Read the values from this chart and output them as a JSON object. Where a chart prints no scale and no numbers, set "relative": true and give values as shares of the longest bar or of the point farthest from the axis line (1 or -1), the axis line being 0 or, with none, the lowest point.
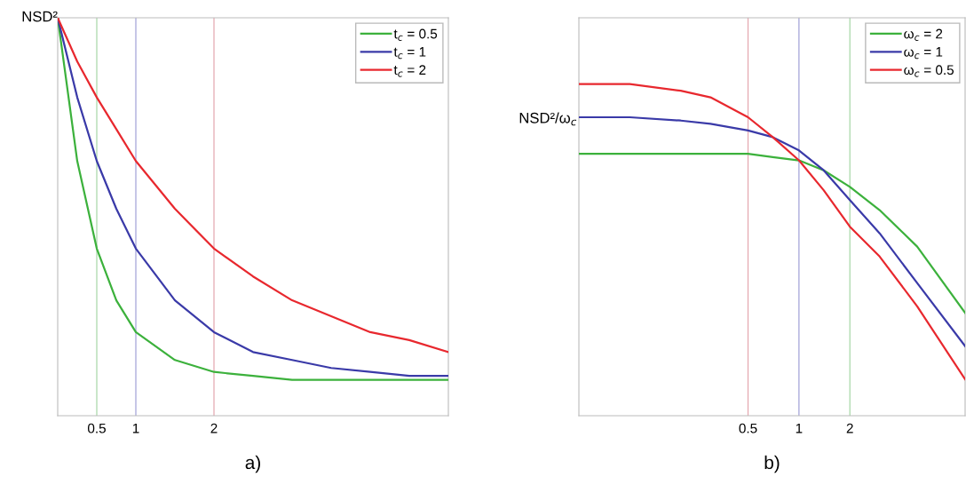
{
  "chart_data": [
    {
      "type": "line",
      "xlabel": "a)",
      "ylabel": "NSD²",
      "relative": true,
      "xlim": [
        0,
        5
      ],
      "xticks": [
        0.5,
        1,
        2
      ],
      "legend": "top right",
      "grid": false,
      "x": [
        0,
        0.25,
        0.5,
        0.75,
        1,
        1.5,
        2,
        2.5,
        3,
        3.5,
        4,
        4.5,
        5
      ],
      "series": [
        {
          "name": "t$_{c}$ = 0.5",
          "color": "#3cb13c",
          "values": [
            1.0,
            0.64,
            0.42,
            0.29,
            0.21,
            0.14,
            0.11,
            0.1,
            0.09,
            0.09,
            0.09,
            0.09,
            0.09
          ]
        },
        {
          "name": "t$_{c}$ = 1",
          "color": "#3a3aa8",
          "values": [
            1.0,
            0.8,
            0.64,
            0.52,
            0.42,
            0.29,
            0.21,
            0.16,
            0.14,
            0.12,
            0.11,
            0.1,
            0.1
          ]
        },
        {
          "name": "t$_{c}$ = 2",
          "color": "#e8282e",
          "values": [
            1.0,
            0.89,
            0.8,
            0.72,
            0.64,
            0.52,
            0.42,
            0.35,
            0.29,
            0.25,
            0.21,
            0.19,
            0.16
          ]
        }
      ],
      "ref_lines": [
        {
          "axis": "x",
          "value": 0.5,
          "color": "#a8d8a8"
        },
        {
          "axis": "x",
          "value": 1,
          "color": "#a4a4d8"
        },
        {
          "axis": "x",
          "value": 2,
          "color": "#e4a8b0"
        }
      ]
    },
    {
      "type": "line",
      "xlabel": "b)",
      "ylabel": "NSD²/ω$_{c}$",
      "relative": true,
      "log": "x",
      "xlim": [
        0.05,
        9.6
      ],
      "xticks": [
        0.5,
        1,
        2
      ],
      "legend": "top right",
      "grid": false,
      "x": [
        0.05,
        0.1,
        0.2,
        0.3,
        0.5,
        0.7,
        1,
        1.4,
        2,
        3,
        5,
        9.6
      ],
      "series": [
        {
          "name": "ω$_{c}$ = 2",
          "color": "#3cb13c",
          "values": [
            0.79,
            0.79,
            0.79,
            0.79,
            0.79,
            0.78,
            0.77,
            0.74,
            0.69,
            0.62,
            0.51,
            0.31
          ]
        },
        {
          "name": "ω$_{c}$ = 1",
          "color": "#3a3aa8",
          "values": [
            0.9,
            0.9,
            0.89,
            0.88,
            0.86,
            0.84,
            0.8,
            0.74,
            0.65,
            0.55,
            0.4,
            0.21
          ]
        },
        {
          "name": "ω$_{c}$ = 0.5",
          "color": "#e8282e",
          "values": [
            1.0,
            1.0,
            0.98,
            0.96,
            0.9,
            0.84,
            0.77,
            0.68,
            0.57,
            0.48,
            0.33,
            0.11
          ]
        }
      ],
      "ref_lines": [
        {
          "axis": "x",
          "value": 0.5,
          "color": "#e4a8b0"
        },
        {
          "axis": "x",
          "value": 1,
          "color": "#a4a4d8"
        },
        {
          "axis": "x",
          "value": 2,
          "color": "#a8d8a8"
        }
      ]
    }
  ]
}
